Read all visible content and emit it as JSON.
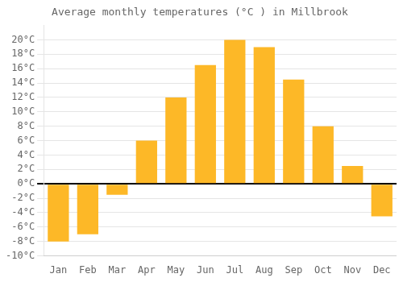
{
  "chart_data": {
    "type": "bar",
    "title": "Average monthly temperatures (°C ) in Millbrook",
    "categories": [
      "Jan",
      "Feb",
      "Mar",
      "Apr",
      "May",
      "Jun",
      "Jul",
      "Aug",
      "Sep",
      "Oct",
      "Nov",
      "Dec"
    ],
    "values": [
      -8,
      -7,
      -1.5,
      6,
      12,
      16.5,
      20,
      19,
      14.5,
      8,
      2.5,
      -4.5
    ],
    "color": "#FDB827",
    "ylim": [
      -10,
      22
    ],
    "yticks": [
      {
        "value": -10,
        "label": "-10°C"
      },
      {
        "value": -8,
        "label": "-8°C"
      },
      {
        "value": -6,
        "label": "-6°C"
      },
      {
        "value": -4,
        "label": "-4°C"
      },
      {
        "value": -2,
        "label": "-2°C"
      },
      {
        "value": 0,
        "label": "0°C"
      },
      {
        "value": 2,
        "label": "2°C"
      },
      {
        "value": 4,
        "label": "4°C"
      },
      {
        "value": 6,
        "label": "6°C"
      },
      {
        "value": 8,
        "label": "8°C"
      },
      {
        "value": 10,
        "label": "10°C"
      },
      {
        "value": 12,
        "label": "12°C"
      },
      {
        "value": 14,
        "label": "14°C"
      },
      {
        "value": 16,
        "label": "16°C"
      },
      {
        "value": 18,
        "label": "18°C"
      },
      {
        "value": 20,
        "label": "20°C"
      }
    ],
    "grid": true
  }
}
